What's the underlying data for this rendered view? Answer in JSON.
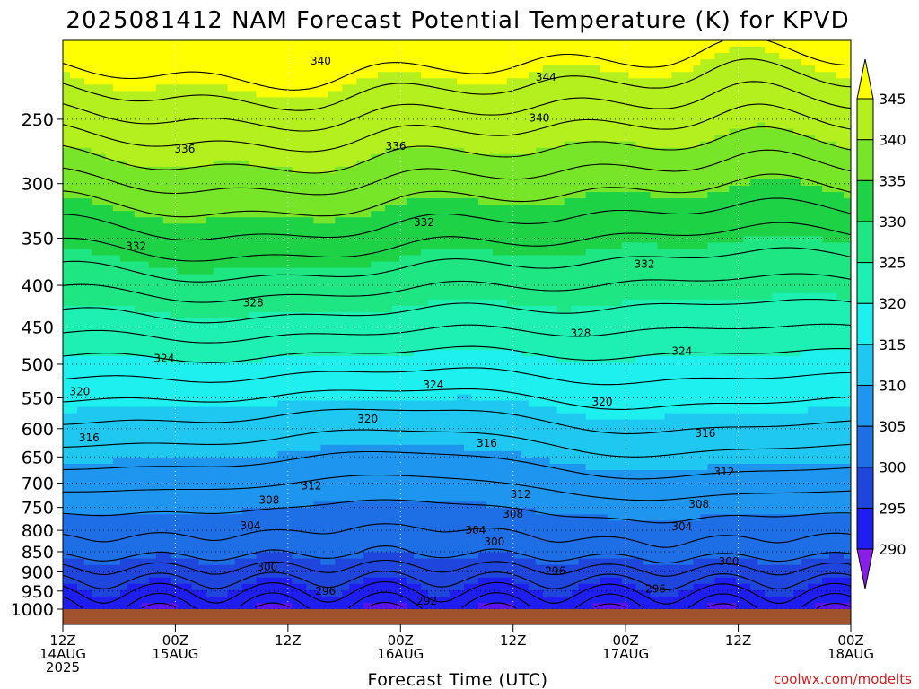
{
  "chart_data": {
    "type": "heatmap",
    "title": "2025081412 NAM Forecast Potential Temperature (K) for KPVD",
    "xlabel": "Forecast Time (UTC)",
    "ylabel": "",
    "watermark": "coolwx.com/modelts",
    "x_range_hours": [
      0,
      84
    ],
    "y_range_hpa": [
      1000,
      200
    ],
    "y_scale": "log-pressure",
    "y_ticks": [
      "250",
      "300",
      "350",
      "400",
      "450",
      "500",
      "550",
      "600",
      "650",
      "700",
      "750",
      "800",
      "850",
      "900",
      "950",
      "1000"
    ],
    "x_ticks": [
      {
        "hour": 0,
        "lines": [
          "12Z",
          "14AUG",
          "2025"
        ]
      },
      {
        "hour": 12,
        "lines": [
          "00Z",
          "15AUG"
        ]
      },
      {
        "hour": 24,
        "lines": [
          "12Z"
        ]
      },
      {
        "hour": 36,
        "lines": [
          "00Z",
          "16AUG"
        ]
      },
      {
        "hour": 48,
        "lines": [
          "12Z"
        ]
      },
      {
        "hour": 60,
        "lines": [
          "00Z",
          "17AUG"
        ]
      },
      {
        "hour": 72,
        "lines": [
          "12Z"
        ]
      },
      {
        "hour": 84,
        "lines": [
          "00Z",
          "18AUG"
        ]
      }
    ],
    "colorbar": {
      "levels": [
        "290",
        "295",
        "300",
        "305",
        "310",
        "315",
        "320",
        "325",
        "330",
        "335",
        "340",
        "345"
      ],
      "colors": [
        "#8a1ee6",
        "#5a14f0",
        "#1e1ef0",
        "#1e46dc",
        "#1e6ee6",
        "#1e96f0",
        "#1ec8f0",
        "#1ef0f0",
        "#1ef0b4",
        "#1ee682",
        "#1ed246",
        "#78e628",
        "#b4f01e",
        "#ffff00"
      ]
    },
    "grid": true,
    "contour_labels": [
      {
        "value": "340",
        "t": 27.5,
        "p": 212
      },
      {
        "value": "344",
        "t": 51.5,
        "p": 222
      },
      {
        "value": "340",
        "t": 50.8,
        "p": 249
      },
      {
        "value": "336",
        "t": 13.0,
        "p": 272
      },
      {
        "value": "336",
        "t": 35.5,
        "p": 270
      },
      {
        "value": "332",
        "t": 7.8,
        "p": 358
      },
      {
        "value": "332",
        "t": 38.5,
        "p": 335
      },
      {
        "value": "332",
        "t": 62.0,
        "p": 377
      },
      {
        "value": "328",
        "t": 20.3,
        "p": 420
      },
      {
        "value": "328",
        "t": 55.2,
        "p": 458
      },
      {
        "value": "324",
        "t": 10.8,
        "p": 492
      },
      {
        "value": "324",
        "t": 39.5,
        "p": 530
      },
      {
        "value": "324",
        "t": 66.0,
        "p": 482
      },
      {
        "value": "320",
        "t": 1.8,
        "p": 540
      },
      {
        "value": "320",
        "t": 32.5,
        "p": 584
      },
      {
        "value": "320",
        "t": 57.5,
        "p": 556
      },
      {
        "value": "316",
        "t": 2.8,
        "p": 616
      },
      {
        "value": "316",
        "t": 45.2,
        "p": 625
      },
      {
        "value": "316",
        "t": 68.5,
        "p": 608
      },
      {
        "value": "312",
        "t": 26.5,
        "p": 705
      },
      {
        "value": "312",
        "t": 48.8,
        "p": 723
      },
      {
        "value": "312",
        "t": 70.5,
        "p": 678
      },
      {
        "value": "308",
        "t": 22.0,
        "p": 735
      },
      {
        "value": "308",
        "t": 48.0,
        "p": 764
      },
      {
        "value": "308",
        "t": 67.8,
        "p": 743
      },
      {
        "value": "304",
        "t": 20.0,
        "p": 790
      },
      {
        "value": "304",
        "t": 44.0,
        "p": 800
      },
      {
        "value": "304",
        "t": 66.0,
        "p": 792
      },
      {
        "value": "300",
        "t": 46.0,
        "p": 827
      },
      {
        "value": "300",
        "t": 21.8,
        "p": 888
      },
      {
        "value": "300",
        "t": 71.0,
        "p": 874
      },
      {
        "value": "296",
        "t": 52.5,
        "p": 898
      },
      {
        "value": "296",
        "t": 28.0,
        "p": 950
      },
      {
        "value": "296",
        "t": 63.2,
        "p": 945
      },
      {
        "value": "292",
        "t": 38.8,
        "p": 977
      }
    ]
  }
}
